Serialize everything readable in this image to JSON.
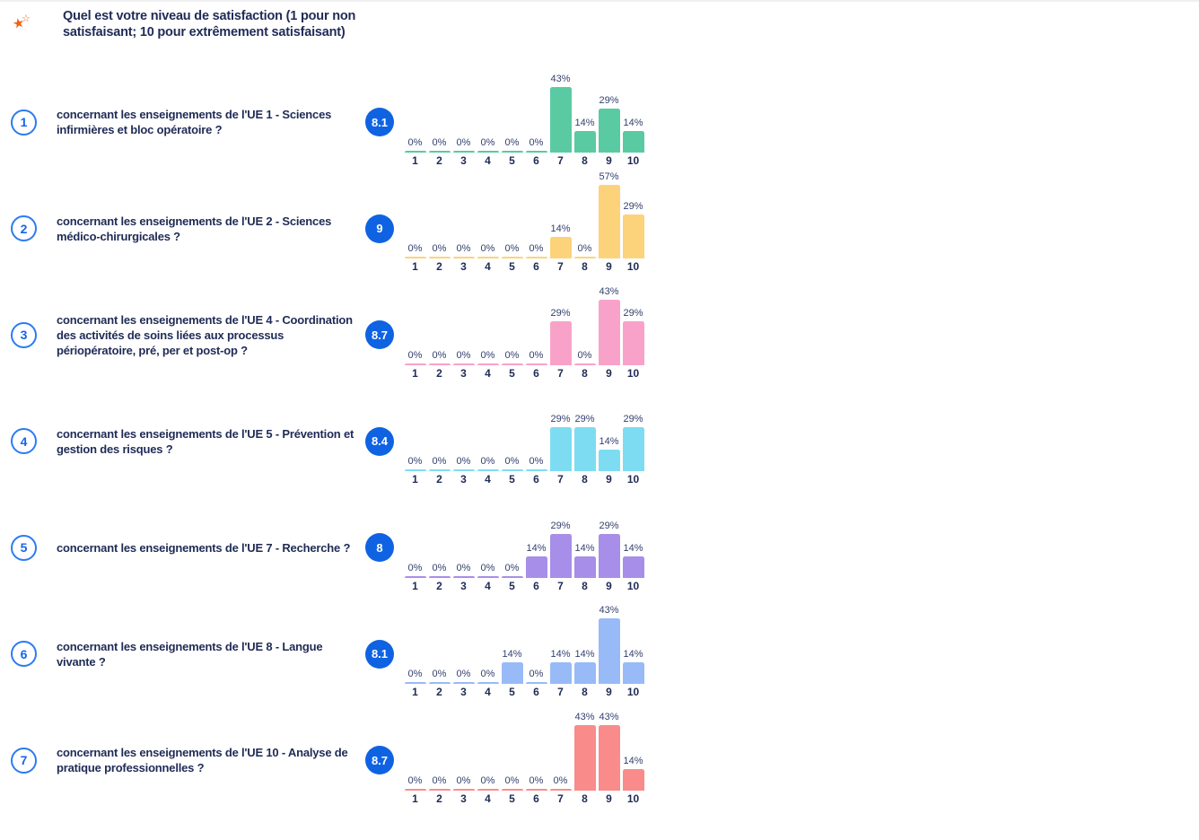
{
  "header": {
    "title": "Quel est votre niveau de satisfaction (1 pour non satisfaisant; 10 pour extrêmement satisfaisant)",
    "icon": "rating-stars-icon",
    "icon_color": "#f4620e"
  },
  "colors": {
    "accent_blue": "#0f63e2",
    "number_circle_border": "#2c7bf2",
    "navy_text": "#1f2b56",
    "value_label_text": "#34406e"
  },
  "chart_data": [
    {
      "type": "bar",
      "number": "1",
      "title": "concernant les enseignements de l'UE 1 - Sciences infirmières et bloc opératoire ?",
      "score": 8.1,
      "score_label": "8.1",
      "color": "#5acaa3",
      "categories": [
        "1",
        "2",
        "3",
        "4",
        "5",
        "6",
        "7",
        "8",
        "9",
        "10"
      ],
      "values": [
        0,
        0,
        0,
        0,
        0,
        0,
        43,
        14,
        29,
        14
      ],
      "value_labels": [
        "0%",
        "0%",
        "0%",
        "0%",
        "0%",
        "0%",
        "43%",
        "14%",
        "29%",
        "14%"
      ],
      "unit": "%",
      "ylim": [
        0,
        57
      ]
    },
    {
      "type": "bar",
      "number": "2",
      "title": "concernant les enseignements de l'UE 2 - Sciences médico-chirurgicales ?",
      "score": 9,
      "score_label": "9",
      "color": "#fcd37b",
      "categories": [
        "1",
        "2",
        "3",
        "4",
        "5",
        "6",
        "7",
        "8",
        "9",
        "10"
      ],
      "values": [
        0,
        0,
        0,
        0,
        0,
        0,
        14,
        0,
        57,
        29
      ],
      "value_labels": [
        "0%",
        "0%",
        "0%",
        "0%",
        "0%",
        "0%",
        "14%",
        "0%",
        "57%",
        "29%"
      ],
      "unit": "%",
      "ylim": [
        0,
        57
      ]
    },
    {
      "type": "bar",
      "number": "3",
      "title": "concernant les enseignements de l'UE 4 - Coordination des activités de soins liées aux processus périopératoire, pré, per et post-op ?",
      "score": 8.7,
      "score_label": "8.7",
      "color": "#f9a2c9",
      "categories": [
        "1",
        "2",
        "3",
        "4",
        "5",
        "6",
        "7",
        "8",
        "9",
        "10"
      ],
      "values": [
        0,
        0,
        0,
        0,
        0,
        0,
        29,
        0,
        43,
        29
      ],
      "value_labels": [
        "0%",
        "0%",
        "0%",
        "0%",
        "0%",
        "0%",
        "29%",
        "0%",
        "43%",
        "29%"
      ],
      "unit": "%",
      "ylim": [
        0,
        57
      ]
    },
    {
      "type": "bar",
      "number": "4",
      "title": "concernant les enseignements de l'UE 5 - Prévention et gestion des risques  ?",
      "score": 8.4,
      "score_label": "8.4",
      "color": "#7edcf2",
      "categories": [
        "1",
        "2",
        "3",
        "4",
        "5",
        "6",
        "7",
        "8",
        "9",
        "10"
      ],
      "values": [
        0,
        0,
        0,
        0,
        0,
        0,
        29,
        29,
        14,
        29
      ],
      "value_labels": [
        "0%",
        "0%",
        "0%",
        "0%",
        "0%",
        "0%",
        "29%",
        "29%",
        "14%",
        "29%"
      ],
      "unit": "%",
      "ylim": [
        0,
        57
      ]
    },
    {
      "type": "bar",
      "number": "5",
      "title": "concernant les enseignements de l'UE 7 - Recherche ?",
      "score": 8,
      "score_label": "8",
      "color": "#a78ee8",
      "categories": [
        "1",
        "2",
        "3",
        "4",
        "5",
        "6",
        "7",
        "8",
        "9",
        "10"
      ],
      "values": [
        0,
        0,
        0,
        0,
        0,
        14,
        29,
        14,
        29,
        14
      ],
      "value_labels": [
        "0%",
        "0%",
        "0%",
        "0%",
        "0%",
        "14%",
        "29%",
        "14%",
        "29%",
        "14%"
      ],
      "unit": "%",
      "ylim": [
        0,
        57
      ]
    },
    {
      "type": "bar",
      "number": "6",
      "title": "concernant les enseignements de l'UE 8 - Langue vivante  ?",
      "score": 8.1,
      "score_label": "8.1",
      "color": "#98bbf7",
      "categories": [
        "1",
        "2",
        "3",
        "4",
        "5",
        "6",
        "7",
        "8",
        "9",
        "10"
      ],
      "values": [
        0,
        0,
        0,
        0,
        14,
        0,
        14,
        14,
        43,
        14
      ],
      "value_labels": [
        "0%",
        "0%",
        "0%",
        "0%",
        "14%",
        "0%",
        "14%",
        "14%",
        "43%",
        "14%"
      ],
      "unit": "%",
      "ylim": [
        0,
        57
      ]
    },
    {
      "type": "bar",
      "number": "7",
      "title": "concernant les enseignements de l'UE 10 - Analyse de pratique professionnelles  ?",
      "score": 8.7,
      "score_label": "8.7",
      "color": "#f98b8b",
      "categories": [
        "1",
        "2",
        "3",
        "4",
        "5",
        "6",
        "7",
        "8",
        "9",
        "10"
      ],
      "values": [
        0,
        0,
        0,
        0,
        0,
        0,
        0,
        43,
        43,
        14
      ],
      "value_labels": [
        "0%",
        "0%",
        "0%",
        "0%",
        "0%",
        "0%",
        "0%",
        "43%",
        "43%",
        "14%"
      ],
      "unit": "%",
      "ylim": [
        0,
        57
      ]
    }
  ]
}
